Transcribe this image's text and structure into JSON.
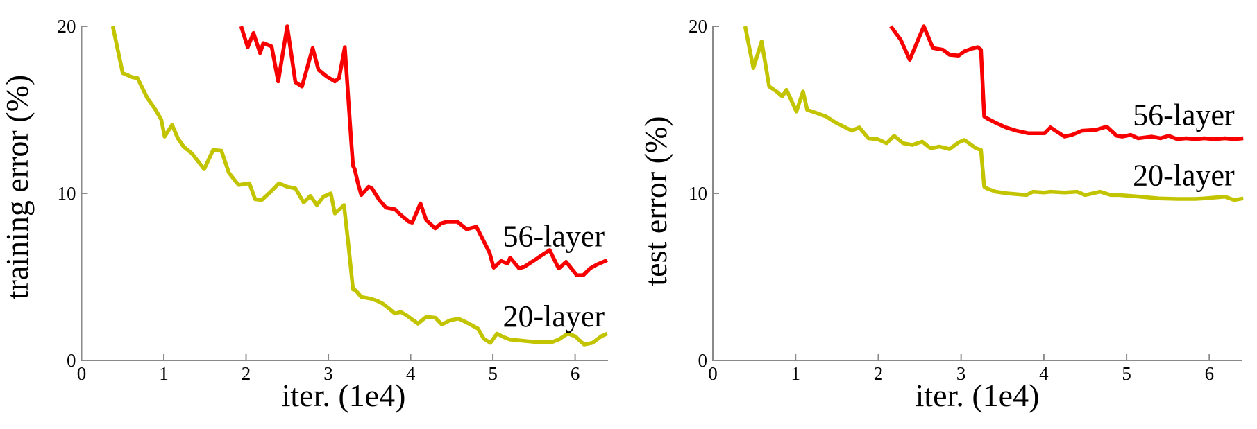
{
  "figure": {
    "background": "#ffffff",
    "axis_color": "#8a8a8a",
    "text_color": "#000000",
    "colors": {
      "layer56": "#f80000",
      "layer20": "#c3c400"
    }
  },
  "chart_data": [
    {
      "type": "line",
      "panel": "left",
      "title": "",
      "xlabel": "iter. (1e4)",
      "ylabel": "training error (%)",
      "xlim": [
        0,
        6.4
      ],
      "ylim": [
        0,
        20
      ],
      "x_ticks": [
        0,
        1,
        2,
        3,
        4,
        5,
        6
      ],
      "y_ticks": [
        0,
        10,
        20
      ],
      "grid": false,
      "legend_position": "inline-annotations",
      "annotations": [
        {
          "label": "56-layer",
          "x": 5.74,
          "y": 7.45
        },
        {
          "label": "20-layer",
          "x": 5.74,
          "y": 2.65
        }
      ],
      "series": [
        {
          "name": "56-layer",
          "color": "#f80000",
          "points": [
            [
              1.94,
              20
            ],
            [
              2.02,
              18.75
            ],
            [
              2.09,
              19.6
            ],
            [
              2.17,
              18.4
            ],
            [
              2.21,
              19.0
            ],
            [
              2.31,
              18.8
            ],
            [
              2.39,
              16.7
            ],
            [
              2.5,
              20
            ],
            [
              2.6,
              16.65
            ],
            [
              2.68,
              16.4
            ],
            [
              2.81,
              18.7
            ],
            [
              2.88,
              17.4
            ],
            [
              2.98,
              17.0
            ],
            [
              3.08,
              16.7
            ],
            [
              3.13,
              16.9
            ],
            [
              3.2,
              18.75
            ],
            [
              3.28,
              13.0
            ],
            [
              3.3,
              11.65
            ],
            [
              3.32,
              11.45
            ],
            [
              3.36,
              10.6
            ],
            [
              3.4,
              9.9
            ],
            [
              3.49,
              10.4
            ],
            [
              3.53,
              10.3
            ],
            [
              3.62,
              9.6
            ],
            [
              3.7,
              9.15
            ],
            [
              3.81,
              9.05
            ],
            [
              3.87,
              8.75
            ],
            [
              3.98,
              8.3
            ],
            [
              4.02,
              8.25
            ],
            [
              4.12,
              9.4
            ],
            [
              4.19,
              8.4
            ],
            [
              4.3,
              7.9
            ],
            [
              4.37,
              8.2
            ],
            [
              4.44,
              8.3
            ],
            [
              4.57,
              8.3
            ],
            [
              4.68,
              7.85
            ],
            [
              4.8,
              8.0
            ],
            [
              4.96,
              6.45
            ],
            [
              5.01,
              5.55
            ],
            [
              5.1,
              5.95
            ],
            [
              5.18,
              5.8
            ],
            [
              5.21,
              6.15
            ],
            [
              5.32,
              5.5
            ],
            [
              5.38,
              5.6
            ],
            [
              5.49,
              5.95
            ],
            [
              5.58,
              6.25
            ],
            [
              5.69,
              6.6
            ],
            [
              5.8,
              5.5
            ],
            [
              5.89,
              5.9
            ],
            [
              6.02,
              5.1
            ],
            [
              6.1,
              5.1
            ],
            [
              6.18,
              5.5
            ],
            [
              6.27,
              5.75
            ],
            [
              6.39,
              6.0
            ]
          ]
        },
        {
          "name": "20-layer",
          "color": "#c3c400",
          "points": [
            [
              0.38,
              20
            ],
            [
              0.5,
              17.2
            ],
            [
              0.62,
              16.95
            ],
            [
              0.68,
              16.9
            ],
            [
              0.8,
              15.7
            ],
            [
              0.9,
              15.0
            ],
            [
              0.97,
              14.4
            ],
            [
              1.01,
              13.4
            ],
            [
              1.1,
              14.1
            ],
            [
              1.17,
              13.3
            ],
            [
              1.24,
              12.8
            ],
            [
              1.34,
              12.4
            ],
            [
              1.42,
              11.9
            ],
            [
              1.49,
              11.45
            ],
            [
              1.6,
              12.6
            ],
            [
              1.7,
              12.55
            ],
            [
              1.79,
              11.25
            ],
            [
              1.86,
              10.8
            ],
            [
              1.91,
              10.5
            ],
            [
              2.04,
              10.6
            ],
            [
              2.11,
              9.65
            ],
            [
              2.19,
              9.6
            ],
            [
              2.3,
              10.1
            ],
            [
              2.4,
              10.6
            ],
            [
              2.5,
              10.4
            ],
            [
              2.6,
              10.3
            ],
            [
              2.7,
              9.45
            ],
            [
              2.78,
              9.85
            ],
            [
              2.86,
              9.3
            ],
            [
              2.94,
              9.8
            ],
            [
              3.03,
              10.0
            ],
            [
              3.08,
              8.8
            ],
            [
              3.16,
              9.15
            ],
            [
              3.19,
              9.3
            ],
            [
              3.24,
              7.1
            ],
            [
              3.3,
              4.25
            ],
            [
              3.33,
              4.2
            ],
            [
              3.4,
              3.8
            ],
            [
              3.51,
              3.7
            ],
            [
              3.6,
              3.55
            ],
            [
              3.66,
              3.4
            ],
            [
              3.74,
              3.1
            ],
            [
              3.81,
              2.8
            ],
            [
              3.88,
              2.9
            ],
            [
              3.95,
              2.7
            ],
            [
              4.02,
              2.45
            ],
            [
              4.09,
              2.2
            ],
            [
              4.19,
              2.6
            ],
            [
              4.3,
              2.55
            ],
            [
              4.38,
              2.15
            ],
            [
              4.48,
              2.4
            ],
            [
              4.58,
              2.5
            ],
            [
              4.67,
              2.3
            ],
            [
              4.82,
              1.9
            ],
            [
              4.89,
              1.3
            ],
            [
              4.97,
              1.05
            ],
            [
              5.05,
              1.6
            ],
            [
              5.13,
              1.4
            ],
            [
              5.21,
              1.25
            ],
            [
              5.32,
              1.2
            ],
            [
              5.52,
              1.1
            ],
            [
              5.72,
              1.1
            ],
            [
              5.8,
              1.25
            ],
            [
              5.91,
              1.6
            ],
            [
              6.0,
              1.45
            ],
            [
              6.11,
              0.95
            ],
            [
              6.21,
              1.05
            ],
            [
              6.32,
              1.45
            ],
            [
              6.39,
              1.6
            ]
          ]
        }
      ]
    },
    {
      "type": "line",
      "panel": "right",
      "title": "",
      "xlabel": "iter. (1e4)",
      "ylabel": "test error (%)",
      "xlim": [
        0,
        6.4
      ],
      "ylim": [
        0,
        20
      ],
      "x_ticks": [
        0,
        1,
        2,
        3,
        4,
        5,
        6
      ],
      "y_ticks": [
        0,
        10,
        20
      ],
      "grid": false,
      "legend_position": "inline-annotations",
      "annotations": [
        {
          "label": "56-layer",
          "x": 5.69,
          "y": 14.7
        },
        {
          "label": "20-layer",
          "x": 5.69,
          "y": 11.1
        }
      ],
      "series": [
        {
          "name": "56-layer",
          "color": "#f80000",
          "points": [
            [
              2.15,
              20
            ],
            [
              2.27,
              19.2
            ],
            [
              2.38,
              18.0
            ],
            [
              2.48,
              19.2
            ],
            [
              2.55,
              20
            ],
            [
              2.66,
              18.7
            ],
            [
              2.78,
              18.6
            ],
            [
              2.86,
              18.3
            ],
            [
              2.97,
              18.25
            ],
            [
              3.04,
              18.5
            ],
            [
              3.12,
              18.65
            ],
            [
              3.2,
              18.75
            ],
            [
              3.24,
              18.6
            ],
            [
              3.28,
              14.6
            ],
            [
              3.31,
              14.5
            ],
            [
              3.43,
              14.2
            ],
            [
              3.54,
              13.95
            ],
            [
              3.67,
              13.75
            ],
            [
              3.81,
              13.6
            ],
            [
              4.01,
              13.6
            ],
            [
              4.08,
              13.95
            ],
            [
              4.25,
              13.4
            ],
            [
              4.34,
              13.5
            ],
            [
              4.46,
              13.75
            ],
            [
              4.63,
              13.8
            ],
            [
              4.76,
              14.0
            ],
            [
              4.88,
              13.45
            ],
            [
              4.95,
              13.4
            ],
            [
              5.05,
              13.5
            ],
            [
              5.14,
              13.3
            ],
            [
              5.3,
              13.4
            ],
            [
              5.41,
              13.3
            ],
            [
              5.51,
              13.45
            ],
            [
              5.61,
              13.25
            ],
            [
              5.72,
              13.3
            ],
            [
              5.83,
              13.25
            ],
            [
              5.94,
              13.3
            ],
            [
              6.06,
              13.25
            ],
            [
              6.19,
              13.3
            ],
            [
              6.3,
              13.25
            ],
            [
              6.41,
              13.3
            ]
          ]
        },
        {
          "name": "20-layer",
          "color": "#c3c400",
          "points": [
            [
              0.39,
              20
            ],
            [
              0.49,
              17.5
            ],
            [
              0.59,
              19.1
            ],
            [
              0.61,
              18.5
            ],
            [
              0.68,
              16.4
            ],
            [
              0.77,
              16.1
            ],
            [
              0.84,
              15.8
            ],
            [
              0.89,
              16.2
            ],
            [
              1.01,
              14.9
            ],
            [
              1.09,
              16.1
            ],
            [
              1.14,
              15.0
            ],
            [
              1.26,
              14.8
            ],
            [
              1.37,
              14.6
            ],
            [
              1.48,
              14.25
            ],
            [
              1.58,
              14.0
            ],
            [
              1.68,
              13.75
            ],
            [
              1.77,
              13.95
            ],
            [
              1.88,
              13.3
            ],
            [
              1.99,
              13.25
            ],
            [
              2.1,
              13.0
            ],
            [
              2.19,
              13.45
            ],
            [
              2.3,
              13.0
            ],
            [
              2.41,
              12.9
            ],
            [
              2.53,
              13.1
            ],
            [
              2.63,
              12.7
            ],
            [
              2.74,
              12.8
            ],
            [
              2.86,
              12.65
            ],
            [
              2.97,
              13.05
            ],
            [
              3.04,
              13.2
            ],
            [
              3.18,
              12.7
            ],
            [
              3.24,
              12.6
            ],
            [
              3.28,
              10.4
            ],
            [
              3.31,
              10.3
            ],
            [
              3.42,
              10.1
            ],
            [
              3.56,
              10.0
            ],
            [
              3.79,
              9.9
            ],
            [
              3.87,
              10.1
            ],
            [
              4.0,
              10.05
            ],
            [
              4.08,
              10.1
            ],
            [
              4.25,
              10.05
            ],
            [
              4.4,
              10.1
            ],
            [
              4.5,
              9.9
            ],
            [
              4.68,
              10.1
            ],
            [
              4.81,
              9.9
            ],
            [
              4.91,
              9.9
            ],
            [
              5.16,
              9.8
            ],
            [
              5.39,
              9.7
            ],
            [
              5.61,
              9.67
            ],
            [
              5.83,
              9.67
            ],
            [
              5.94,
              9.7
            ],
            [
              6.19,
              9.8
            ],
            [
              6.3,
              9.6
            ],
            [
              6.41,
              9.7
            ]
          ]
        }
      ]
    }
  ]
}
